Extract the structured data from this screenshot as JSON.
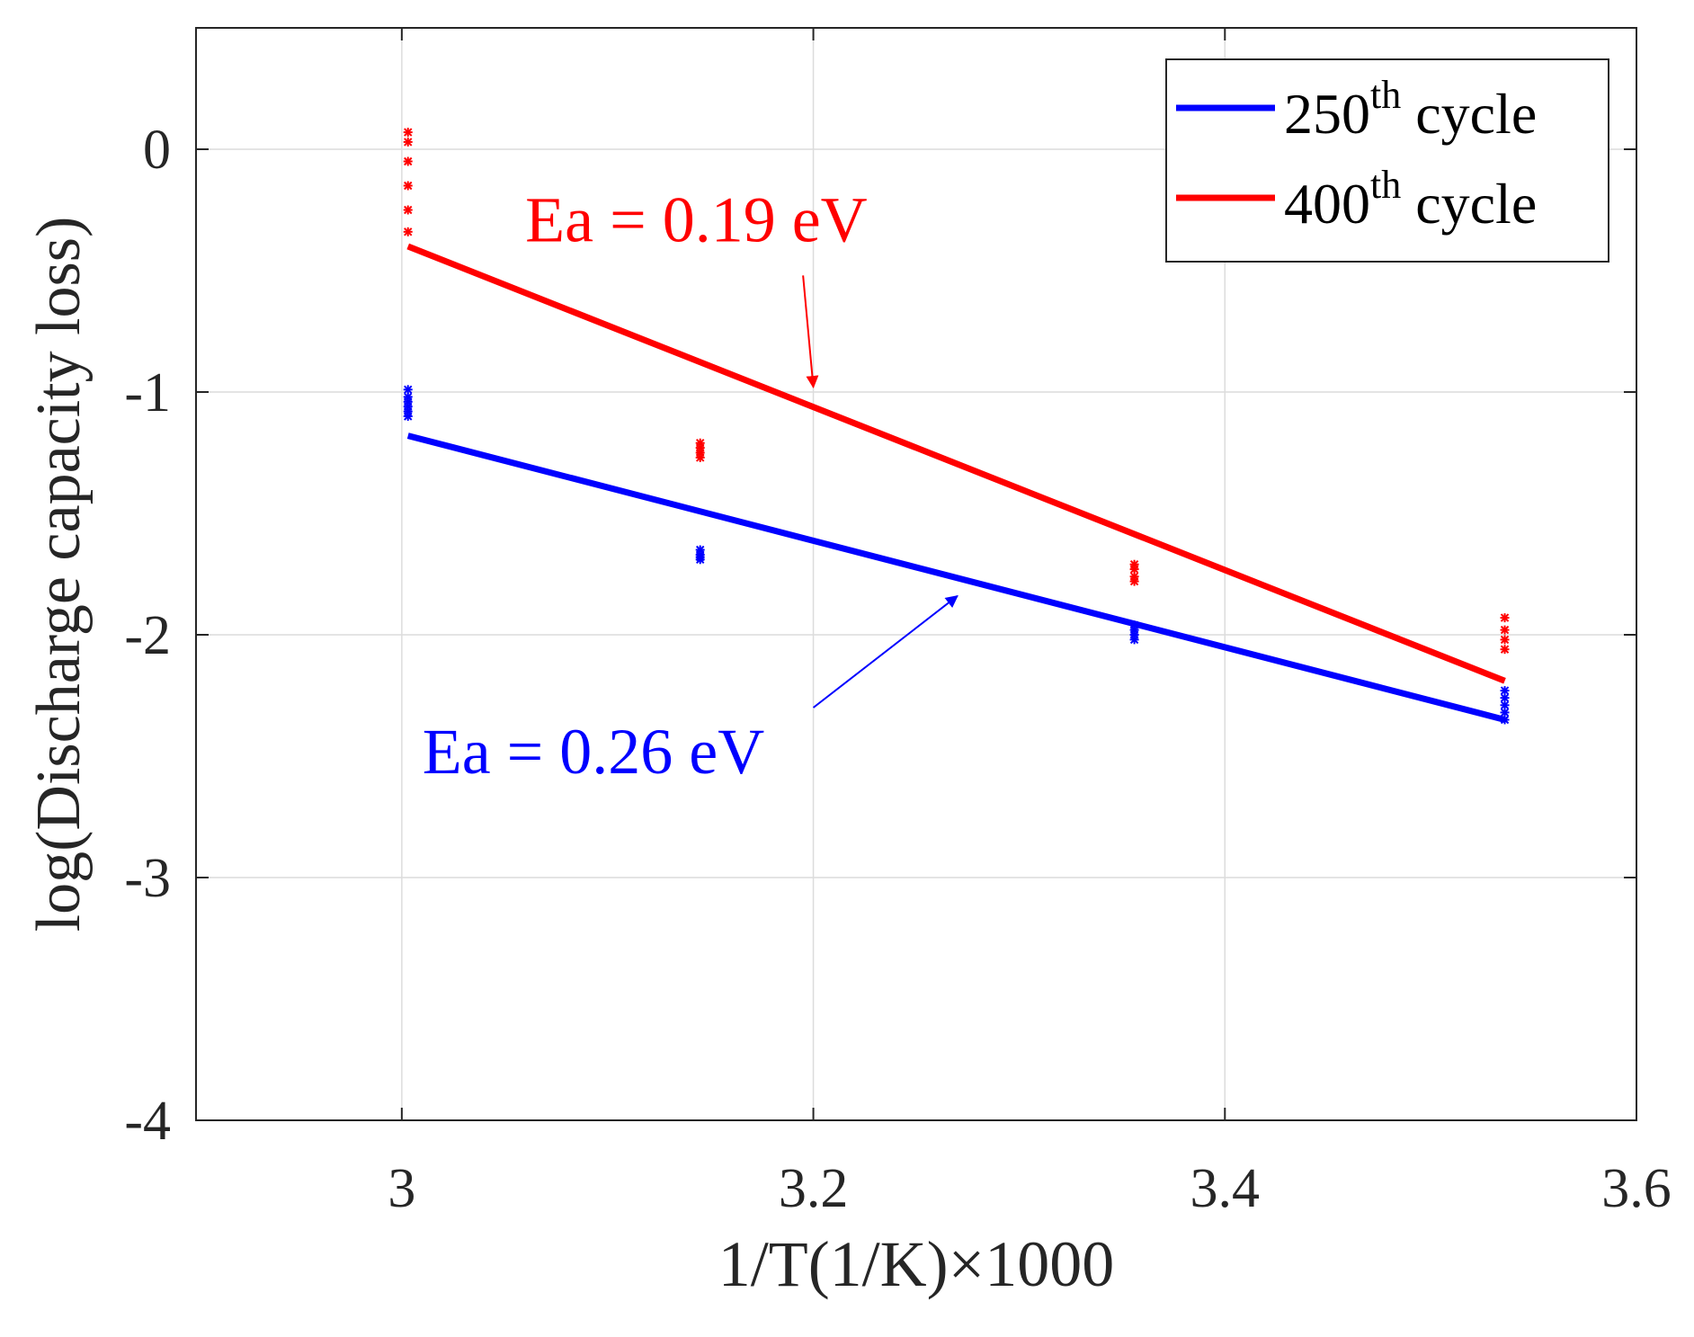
{
  "chart_data": {
    "type": "scatter",
    "title": "",
    "xlabel": "1/T(1/K)×1000",
    "ylabel": "log(Discharge capacity loss)",
    "xlim": [
      2.9,
      3.6
    ],
    "ylim": [
      -4,
      0.5
    ],
    "grid": true,
    "xticks": [
      3,
      3.2,
      3.4,
      3.6
    ],
    "xtick_labels": [
      "3",
      "3.2",
      "3.4",
      "3.6"
    ],
    "yticks": [
      0,
      -1,
      -2,
      -3,
      -4
    ],
    "ytick_labels": [
      "0",
      "-1",
      "-2",
      "-3",
      "-4"
    ],
    "legend_position": "top-right",
    "series": [
      {
        "name": "250th cycle",
        "legend_base": "250",
        "legend_sup": "th",
        "legend_suffix": " cycle",
        "color": "#0000ff",
        "fit_line": {
          "x": [
            3.003,
            3.536
          ],
          "y": [
            -1.18,
            -2.35
          ]
        },
        "points": [
          {
            "x": 3.003,
            "y": [
              -0.99,
              -1.02,
              -1.04,
              -1.06,
              -1.08,
              -1.1
            ]
          },
          {
            "x": 3.145,
            "y": [
              -1.65,
              -1.67,
              -1.68,
              -1.69
            ]
          },
          {
            "x": 3.356,
            "y": [
              -1.96,
              -1.98,
              -2.0,
              -2.02
            ]
          },
          {
            "x": 3.536,
            "y": [
              -2.23,
              -2.26,
              -2.29,
              -2.32,
              -2.35
            ]
          }
        ]
      },
      {
        "name": "400th cycle",
        "legend_base": "400",
        "legend_sup": "th",
        "legend_suffix": " cycle",
        "color": "#ff0000",
        "fit_line": {
          "x": [
            3.003,
            3.536
          ],
          "y": [
            -0.4,
            -2.19
          ]
        },
        "points": [
          {
            "x": 3.003,
            "y": [
              0.07,
              0.03,
              -0.05,
              -0.15,
              -0.25,
              -0.34
            ]
          },
          {
            "x": 3.145,
            "y": [
              -1.21,
              -1.23,
              -1.25,
              -1.27
            ]
          },
          {
            "x": 3.356,
            "y": [
              -1.71,
              -1.73,
              -1.76,
              -1.78
            ]
          },
          {
            "x": 3.536,
            "y": [
              -1.93,
              -1.98,
              -2.02,
              -2.06
            ]
          }
        ]
      }
    ],
    "annotations": [
      {
        "text": "Ea = 0.19 eV",
        "color": "#ff0000",
        "x": 3.06,
        "y": -0.38,
        "arrow_from": [
          3.195,
          -0.52
        ],
        "arrow_to": [
          3.2,
          -0.98
        ]
      },
      {
        "text": "Ea = 0.26 eV",
        "color": "#0000ff",
        "x": 3.01,
        "y": -2.57,
        "arrow_from": [
          3.2,
          -2.3
        ],
        "arrow_to": [
          3.27,
          -1.84
        ]
      }
    ]
  }
}
